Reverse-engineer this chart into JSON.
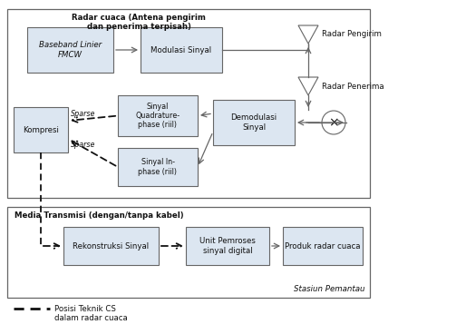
{
  "fig_width": 5.14,
  "fig_height": 3.68,
  "dpi": 100,
  "bg_color": "#ffffff",
  "box_fill": "#dce6f1",
  "box_edge": "#666666",
  "text_color": "#111111",
  "radar_cuaca_label": "Radar cuaca (Antena pengirim\ndan penerima terpisah)",
  "media_transmisi_label": "Media Transmisi (dengan/tanpa kabel)",
  "stasiun_label": "Stasiun Pemantau",
  "radar_pengirim_label": "Radar Pengirim",
  "radar_penerima_label": "Radar Penerima",
  "lbl_baseband": "Baseband Linier\nFMCW",
  "lbl_modulasi": "Modulasi Sinyal",
  "lbl_demodulasi": "Demodulasi\nSinyal",
  "lbl_quadrature": "Sinyal\nQuadrature-\nphase (riil)",
  "lbl_inphase": "Sinyal In-\nphase (riil)",
  "lbl_kompresi": "Kompresi",
  "lbl_rekonstruksi": "Rekonstruksi Sinyal",
  "lbl_unit": "Unit Pemroses\nsinyal digital",
  "lbl_produk": "Produk radar cuaca",
  "sparse1": "Sparse",
  "sparse2": "Sparse",
  "posisi_label": "Posisi Teknik CS\ndalam radar cuaca"
}
